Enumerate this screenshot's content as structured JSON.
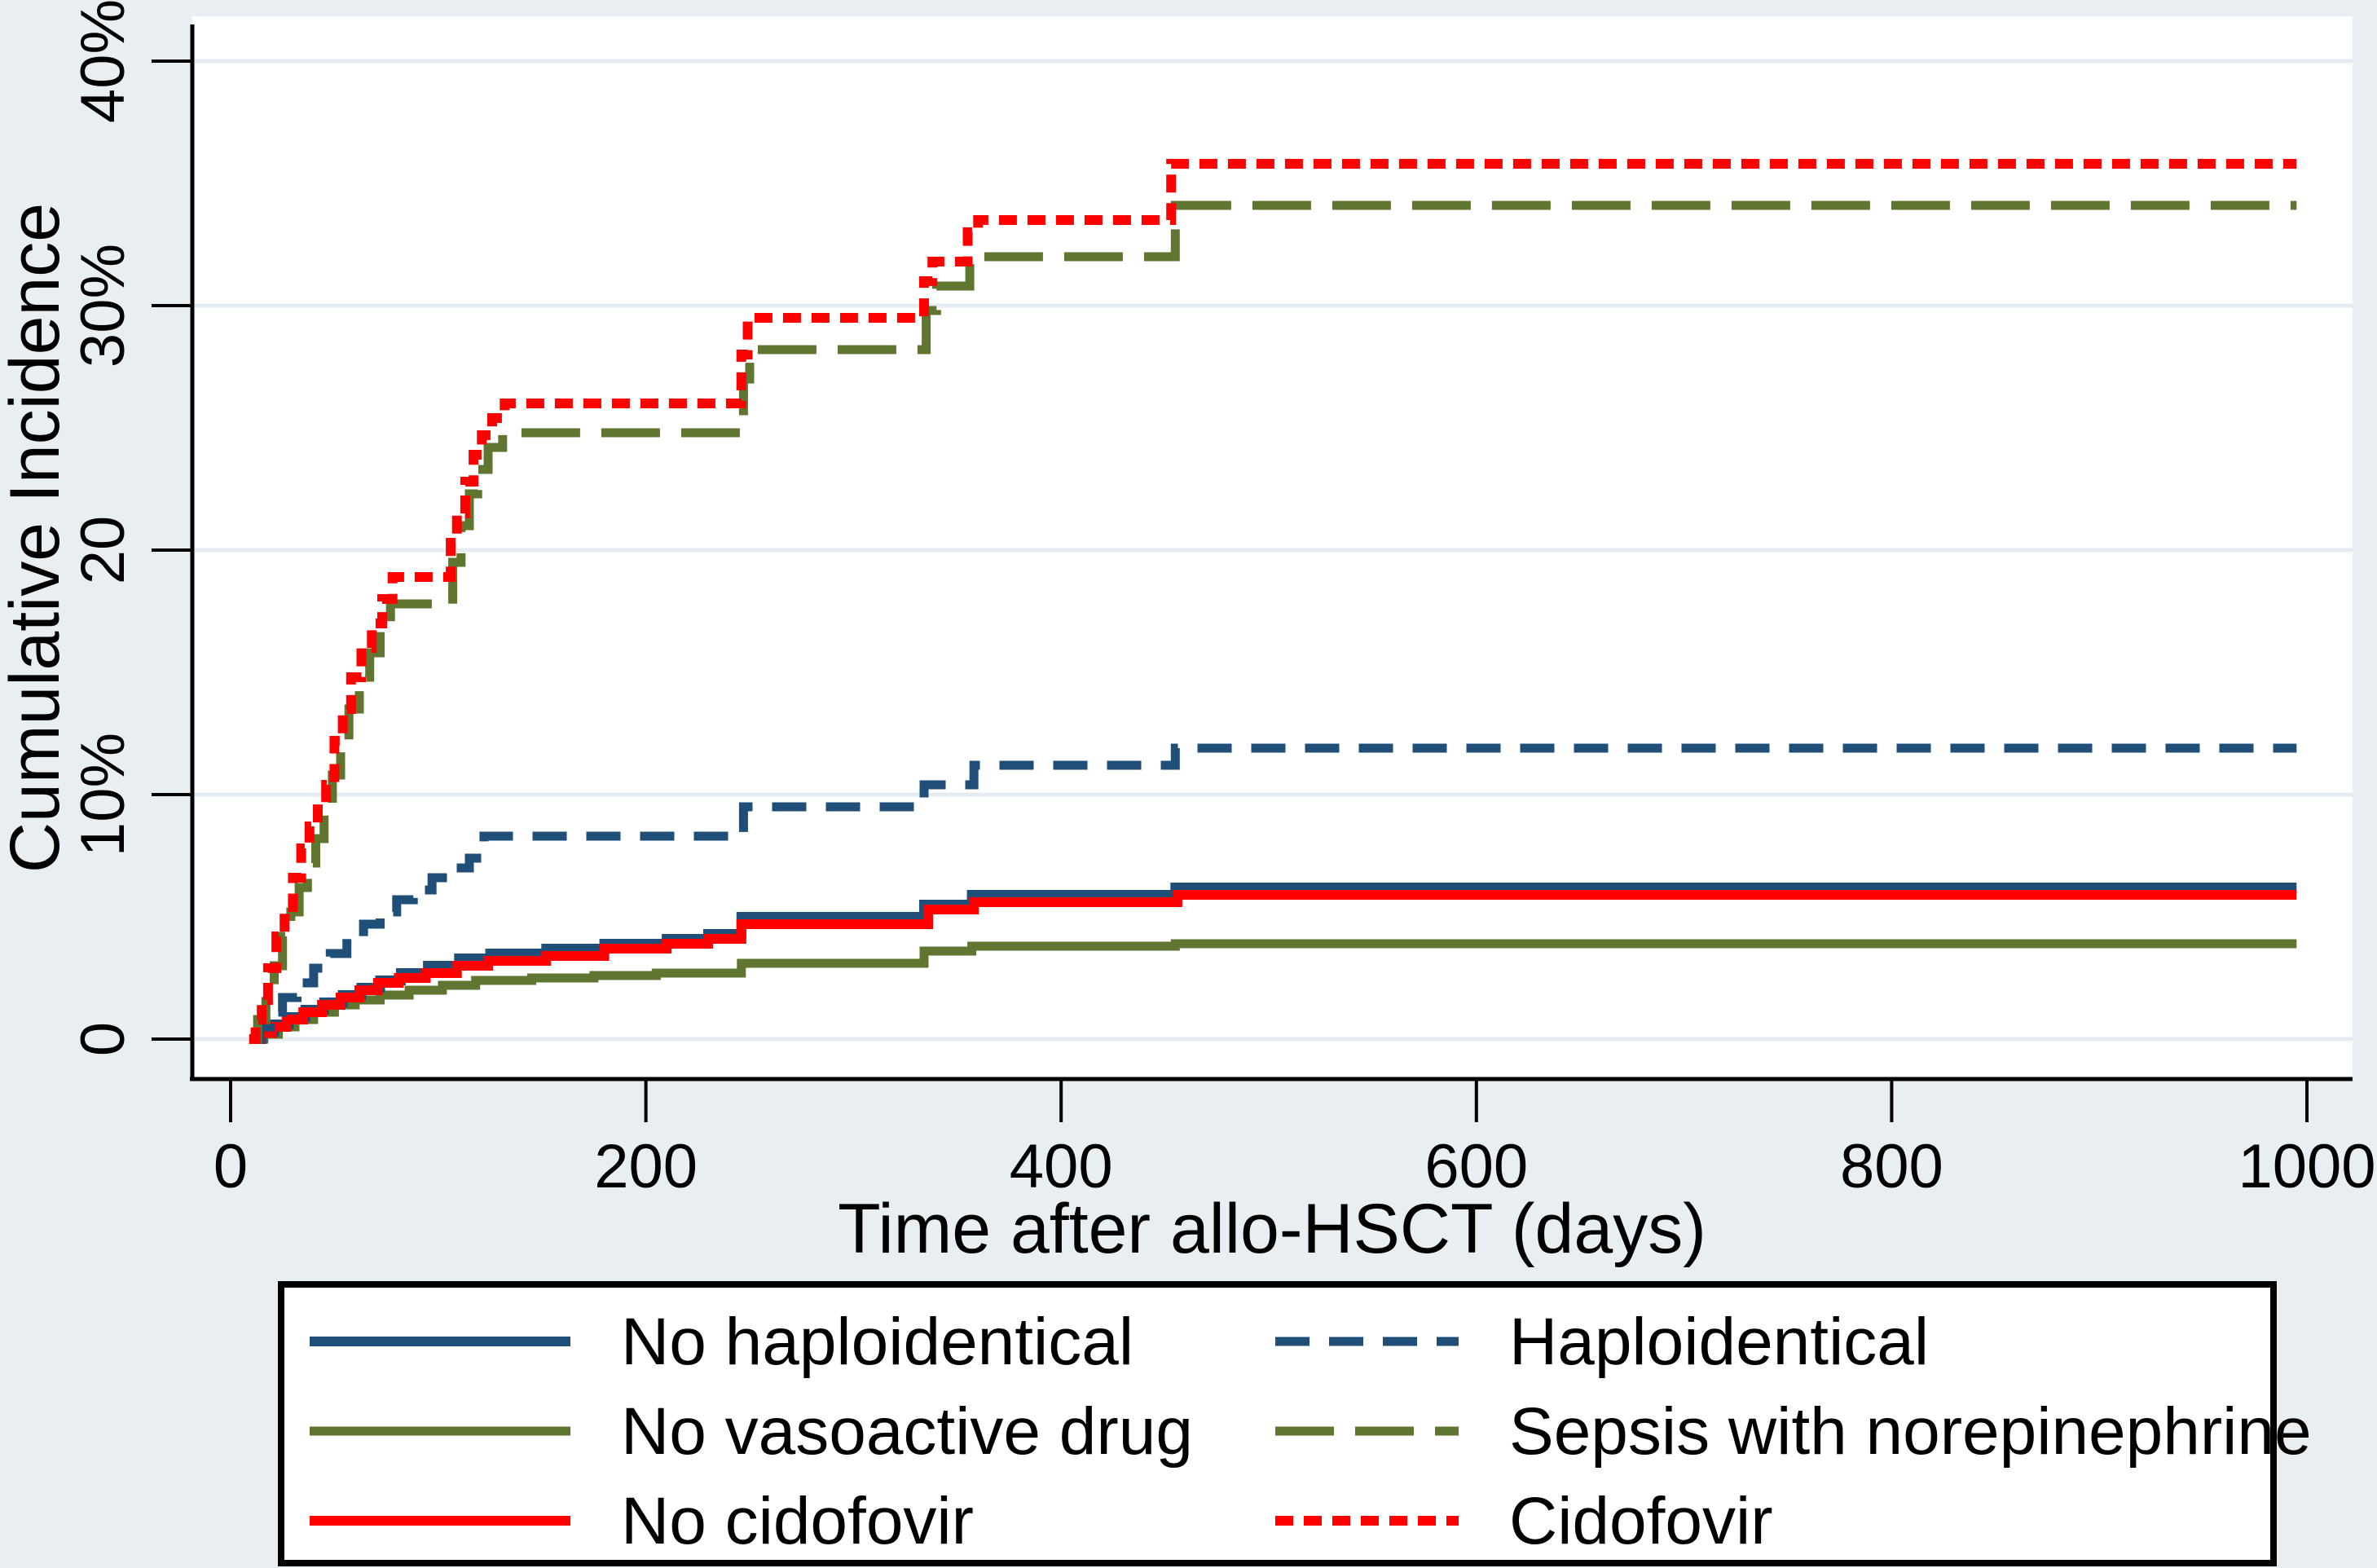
{
  "chart_data": {
    "type": "line",
    "subtype": "step-cumulative-incidence",
    "title": "",
    "xlabel": "Time after allo-HSCT (days)",
    "ylabel": "Cumulative Incidence",
    "x_unit": "days",
    "y_unit": "percent",
    "xlim": [
      -20,
      1020
    ],
    "ylim": [
      -1.6,
      41.6
    ],
    "grid": "horizontal",
    "x_ticks": [
      {
        "value": 0,
        "label": "0"
      },
      {
        "value": 200,
        "label": "200"
      },
      {
        "value": 400,
        "label": "400"
      },
      {
        "value": 600,
        "label": "600"
      },
      {
        "value": 800,
        "label": "800"
      },
      {
        "value": 1000,
        "label": "1000"
      }
    ],
    "y_ticks": [
      {
        "value": 0,
        "label": "0"
      },
      {
        "value": 10,
        "label": "10%"
      },
      {
        "value": 20,
        "label": "20"
      },
      {
        "value": 30,
        "label": "30%"
      },
      {
        "value": 40,
        "label": "40%"
      }
    ],
    "series": [
      {
        "name": "No vasoactive drug",
        "color": "#5f7530",
        "dash": "solid",
        "width": 11,
        "points": [
          [
            10,
            0
          ],
          [
            16,
            0.2
          ],
          [
            23,
            0.5
          ],
          [
            31,
            0.8
          ],
          [
            40,
            1.1
          ],
          [
            50,
            1.4
          ],
          [
            60,
            1.6
          ],
          [
            72,
            1.8
          ],
          [
            86,
            2.0
          ],
          [
            102,
            2.2
          ],
          [
            118,
            2.4
          ],
          [
            145,
            2.5
          ],
          [
            175,
            2.6
          ],
          [
            205,
            2.7
          ],
          [
            246,
            3.1
          ],
          [
            334,
            3.6
          ],
          [
            357,
            3.8
          ],
          [
            455,
            3.9
          ],
          [
            995,
            3.9
          ]
        ]
      },
      {
        "name": "No haploidentical",
        "color": "#1f4e79",
        "dash": "solid",
        "width": 12,
        "points": [
          [
            10,
            0
          ],
          [
            15,
            0.3
          ],
          [
            21,
            0.6
          ],
          [
            28,
            0.9
          ],
          [
            36,
            1.2
          ],
          [
            45,
            1.5
          ],
          [
            54,
            1.8
          ],
          [
            63,
            2.1
          ],
          [
            72,
            2.4
          ],
          [
            82,
            2.7
          ],
          [
            95,
            3.0
          ],
          [
            110,
            3.3
          ],
          [
            125,
            3.5
          ],
          [
            152,
            3.7
          ],
          [
            180,
            3.9
          ],
          [
            210,
            4.1
          ],
          [
            230,
            4.3
          ],
          [
            246,
            5.0
          ],
          [
            334,
            5.5
          ],
          [
            357,
            5.9
          ],
          [
            455,
            6.2
          ],
          [
            995,
            6.2
          ]
        ]
      },
      {
        "name": "No cidofovir",
        "color": "#fe0000",
        "dash": "solid",
        "width": 12,
        "points": [
          [
            9,
            0
          ],
          [
            14,
            0.25
          ],
          [
            20,
            0.5
          ],
          [
            27,
            0.8
          ],
          [
            35,
            1.1
          ],
          [
            44,
            1.4
          ],
          [
            53,
            1.7
          ],
          [
            62,
            2.0
          ],
          [
            71,
            2.3
          ],
          [
            81,
            2.5
          ],
          [
            94,
            2.7
          ],
          [
            109,
            3.0
          ],
          [
            124,
            3.2
          ],
          [
            152,
            3.4
          ],
          [
            180,
            3.7
          ],
          [
            210,
            3.9
          ],
          [
            230,
            4.1
          ],
          [
            246,
            4.7
          ],
          [
            336,
            5.3
          ],
          [
            358,
            5.6
          ],
          [
            456,
            5.9
          ],
          [
            995,
            5.9
          ]
        ]
      },
      {
        "name": "Haploidentical",
        "color": "#1f4e79",
        "dash": "dashed",
        "width": 11,
        "points": [
          [
            10,
            0
          ],
          [
            14,
            0.5
          ],
          [
            19,
            1.1
          ],
          [
            25,
            1.7
          ],
          [
            32,
            2.3
          ],
          [
            40,
            2.9
          ],
          [
            48,
            3.5
          ],
          [
            56,
            4.1
          ],
          [
            64,
            4.7
          ],
          [
            72,
            5.2
          ],
          [
            80,
            5.7
          ],
          [
            88,
            6.1
          ],
          [
            97,
            6.6
          ],
          [
            106,
            7.0
          ],
          [
            115,
            7.4
          ],
          [
            122,
            8.3
          ],
          [
            247,
            9.5
          ],
          [
            334,
            10.4
          ],
          [
            358,
            11.2
          ],
          [
            455,
            11.9
          ],
          [
            995,
            11.9
          ]
        ]
      },
      {
        "name": "Sepsis with norepinephrine",
        "color": "#5f7530",
        "dash": "longdash",
        "width": 11,
        "points": [
          [
            9,
            0
          ],
          [
            13,
            0.8
          ],
          [
            17,
            1.8
          ],
          [
            21,
            3.0
          ],
          [
            25,
            4.2
          ],
          [
            29,
            5.2
          ],
          [
            33,
            6.2
          ],
          [
            37,
            7.2
          ],
          [
            41,
            8.2
          ],
          [
            45,
            9.2
          ],
          [
            49,
            10.8
          ],
          [
            53,
            12.2
          ],
          [
            57,
            13.5
          ],
          [
            62,
            14.8
          ],
          [
            67,
            15.8
          ],
          [
            72,
            16.8
          ],
          [
            77,
            17.8
          ],
          [
            107,
            19.5
          ],
          [
            111,
            21.0
          ],
          [
            115,
            22.3
          ],
          [
            119,
            23.3
          ],
          [
            124,
            24.2
          ],
          [
            131,
            24.8
          ],
          [
            247,
            27.0
          ],
          [
            250,
            28.2
          ],
          [
            335,
            29.8
          ],
          [
            340,
            30.8
          ],
          [
            356,
            31.7
          ],
          [
            361,
            32.0
          ],
          [
            455,
            34.1
          ],
          [
            995,
            34.1
          ]
        ]
      },
      {
        "name": "Cidofovir",
        "color": "#fe0000",
        "dash": "dot",
        "width": 12,
        "points": [
          [
            9,
            0
          ],
          [
            12,
            0.8
          ],
          [
            15,
            1.6
          ],
          [
            18,
            2.9
          ],
          [
            22,
            4.2
          ],
          [
            26,
            5.4
          ],
          [
            30,
            6.6
          ],
          [
            34,
            7.8
          ],
          [
            38,
            8.7
          ],
          [
            42,
            9.6
          ],
          [
            46,
            10.4
          ],
          [
            50,
            12.2
          ],
          [
            54,
            13.5
          ],
          [
            58,
            14.8
          ],
          [
            63,
            16.0
          ],
          [
            68,
            17.0
          ],
          [
            73,
            18.0
          ],
          [
            78,
            18.9
          ],
          [
            106,
            20.3
          ],
          [
            109,
            21.5
          ],
          [
            113,
            22.8
          ],
          [
            117,
            23.9
          ],
          [
            121,
            24.7
          ],
          [
            126,
            25.4
          ],
          [
            132,
            26.0
          ],
          [
            246,
            28.0
          ],
          [
            249,
            29.5
          ],
          [
            334,
            31.0
          ],
          [
            338,
            31.8
          ],
          [
            355,
            33.0
          ],
          [
            360,
            33.5
          ],
          [
            453,
            35.8
          ],
          [
            995,
            35.8
          ]
        ]
      }
    ],
    "legend": {
      "position": "bottom-box",
      "rows": [
        [
          "No haploidentical",
          "Haploidentical"
        ],
        [
          "No vasoactive drug",
          "Sepsis with norepinephrine"
        ],
        [
          "No cidofovir",
          "Cidofovir"
        ]
      ]
    },
    "colors": {
      "navy": "#1f4e79",
      "olive": "#5f7530",
      "red": "#fe0000",
      "background": "#e8eef2",
      "plot_background": "#ffffff",
      "gridline": "#e4ecf2",
      "axis": "#000000",
      "text": "#000000",
      "legend_background": "#ffffff",
      "legend_border": "#000000"
    }
  }
}
